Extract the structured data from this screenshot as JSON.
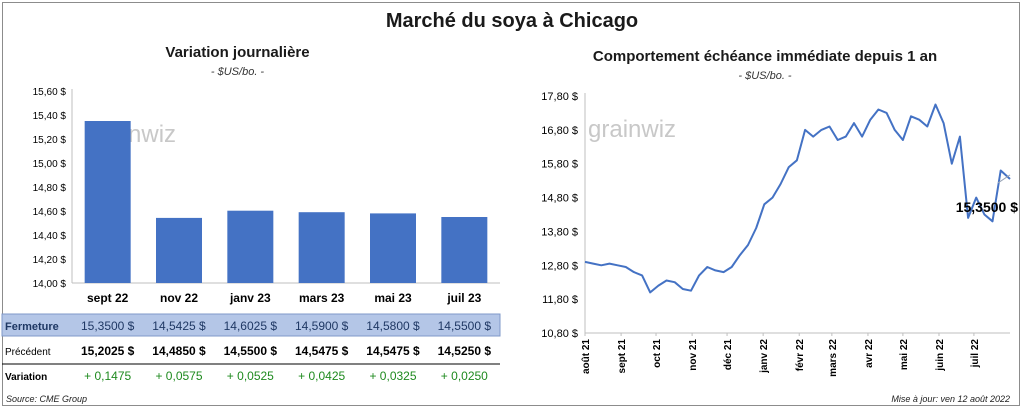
{
  "title": "Marché du soya à Chicago",
  "left": {
    "title": "Variation journalière",
    "unit": "- $US/bo. -"
  },
  "right": {
    "title": "Comportement échéance immédiate depuis 1 an",
    "unit": "- $US/bo. -",
    "last_label": "15,3500 $"
  },
  "watermark": "grainwiz",
  "source": "Source: CME Group",
  "updated": "Mise à jour: ven 12 août 2022",
  "colors": {
    "bar": "#4472c4",
    "line": "#4472c4",
    "highlight": "#b4c6e7",
    "positive": "#1e8a1e"
  },
  "table": {
    "rows": [
      {
        "label": "Fermeture",
        "values": [
          "15,3500 $",
          "14,5425 $",
          "14,6025 $",
          "14,5900 $",
          "14,5800 $",
          "14,5500 $"
        ]
      },
      {
        "label": "Précédent",
        "values": [
          "15,2025 $",
          "14,4850 $",
          "14,5500 $",
          "14,5475 $",
          "14,5475 $",
          "14,5250 $"
        ]
      },
      {
        "label": "Variation",
        "values": [
          "+ 0,1475",
          "+ 0,0575",
          "+ 0,0525",
          "+ 0,0425",
          "+ 0,0325",
          "+ 0,0250"
        ]
      }
    ]
  },
  "chart_data": [
    {
      "type": "bar",
      "title": "Variation journalière",
      "ylabel": "- $US/bo. -",
      "categories": [
        "sept 22",
        "nov 22",
        "janv 23",
        "mars 23",
        "mai 23",
        "juil 23"
      ],
      "values": [
        15.35,
        14.5425,
        14.6025,
        14.59,
        14.58,
        14.55
      ],
      "ylim": [
        14.0,
        15.6
      ],
      "yticks": [
        "14,00 $",
        "14,20 $",
        "14,40 $",
        "14,60 $",
        "14,80 $",
        "15,00 $",
        "15,20 $",
        "15,40 $",
        "15,60 $"
      ],
      "grid": false
    },
    {
      "type": "line",
      "title": "Comportement échéance immédiate depuis 1 an",
      "ylabel": "- $US/bo. -",
      "ylim": [
        10.8,
        17.8
      ],
      "yticks": [
        "10,80 $",
        "11,80 $",
        "12,80 $",
        "13,80 $",
        "14,80 $",
        "15,80 $",
        "16,80 $",
        "17,80 $"
      ],
      "xticks": [
        "août 21",
        "sept 21",
        "oct 21",
        "nov 21",
        "déc 21",
        "janv 22",
        "févr 22",
        "mars 22",
        "avr 22",
        "mai 22",
        "juin 22",
        "juil 22"
      ],
      "x_range": [
        "2021-08-12",
        "2022-08-12"
      ],
      "series": [
        {
          "x": [
            "2021-08-12",
            "2021-08-19",
            "2021-08-26",
            "2021-09-02",
            "2021-09-09",
            "2021-09-16",
            "2021-09-23",
            "2021-09-30",
            "2021-10-07",
            "2021-10-14",
            "2021-10-21",
            "2021-10-28",
            "2021-11-04",
            "2021-11-11",
            "2021-11-18",
            "2021-11-25",
            "2021-12-02",
            "2021-12-09",
            "2021-12-16",
            "2021-12-23",
            "2021-12-30",
            "2022-01-06",
            "2022-01-13",
            "2022-01-20",
            "2022-01-27",
            "2022-02-03",
            "2022-02-10",
            "2022-02-17",
            "2022-02-24",
            "2022-03-03",
            "2022-03-10",
            "2022-03-17",
            "2022-03-24",
            "2022-03-31",
            "2022-04-07",
            "2022-04-14",
            "2022-04-21",
            "2022-04-28",
            "2022-05-05",
            "2022-05-12",
            "2022-05-19",
            "2022-05-26",
            "2022-06-02",
            "2022-06-09",
            "2022-06-16",
            "2022-06-23",
            "2022-06-30",
            "2022-07-07",
            "2022-07-14",
            "2022-07-21",
            "2022-07-28",
            "2022-08-04",
            "2022-08-12"
          ],
          "values": [
            12.9,
            12.85,
            12.8,
            12.85,
            12.8,
            12.75,
            12.6,
            12.5,
            12.0,
            12.2,
            12.35,
            12.3,
            12.1,
            12.05,
            12.5,
            12.75,
            12.65,
            12.6,
            12.75,
            13.1,
            13.4,
            13.9,
            14.6,
            14.8,
            15.2,
            15.7,
            15.9,
            16.8,
            16.6,
            16.8,
            16.9,
            16.5,
            16.6,
            17.0,
            16.6,
            17.1,
            17.4,
            17.3,
            16.8,
            16.5,
            17.2,
            17.1,
            16.9,
            17.55,
            17.0,
            15.8,
            16.6,
            14.2,
            14.8,
            14.3,
            14.1,
            15.6,
            15.35
          ]
        }
      ],
      "annotations": [
        "15,3500 $"
      ]
    }
  ]
}
